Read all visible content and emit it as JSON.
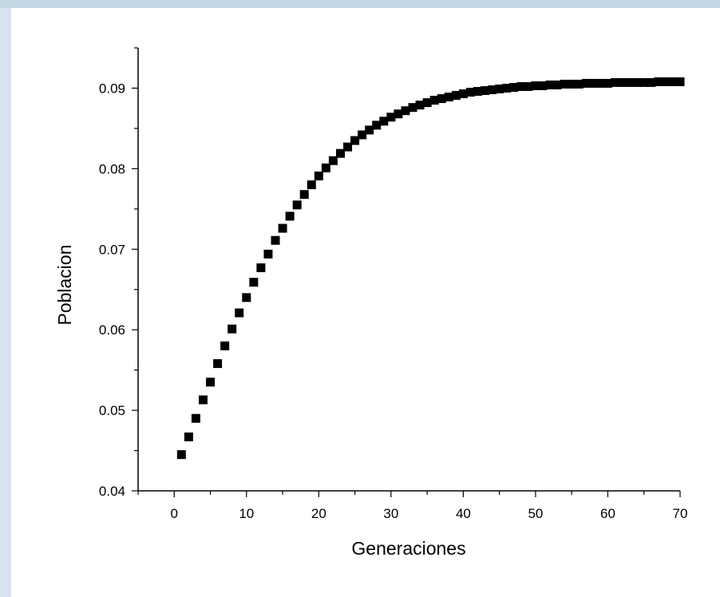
{
  "chart_data": {
    "type": "scatter",
    "title": "",
    "xlabel": "Generaciones",
    "ylabel": "Poblacion",
    "xlim": [
      -5,
      70
    ],
    "ylim": [
      0.04,
      0.095
    ],
    "x_ticks": [
      0,
      10,
      20,
      30,
      40,
      50,
      60,
      70
    ],
    "y_ticks": [
      0.04,
      0.05,
      0.06,
      0.07,
      0.08,
      0.09
    ],
    "x_tick_labels": [
      "0",
      "10",
      "20",
      "30",
      "40",
      "50",
      "60",
      "70"
    ],
    "y_tick_labels": [
      "0.04",
      "0.05",
      "0.06",
      "0.07",
      "0.08",
      "0.09"
    ],
    "marker": "square",
    "marker_color": "#000000",
    "grid": false,
    "legend": "none",
    "series": [
      {
        "x": [
          1,
          2,
          3,
          4,
          5,
          6,
          7,
          8,
          9,
          10,
          11,
          12,
          13,
          14,
          15,
          16,
          17,
          18,
          19,
          20,
          21,
          22,
          23,
          24,
          25,
          26,
          27,
          28,
          29,
          30,
          31,
          32,
          33,
          34,
          35,
          36,
          37,
          38,
          39,
          40,
          41,
          42,
          43,
          44,
          45,
          46,
          47,
          48,
          49,
          50,
          51,
          52,
          53,
          54,
          55,
          56,
          57,
          58,
          59,
          60,
          61,
          62,
          63,
          64,
          65,
          66,
          67,
          68,
          69,
          70
        ],
        "y": [
          0.0445,
          0.0467,
          0.049,
          0.0513,
          0.0535,
          0.0558,
          0.058,
          0.0601,
          0.0621,
          0.064,
          0.0659,
          0.0677,
          0.0694,
          0.0711,
          0.0726,
          0.0741,
          0.0755,
          0.0768,
          0.078,
          0.0791,
          0.0801,
          0.081,
          0.0819,
          0.0827,
          0.0835,
          0.0842,
          0.0848,
          0.0854,
          0.0859,
          0.0864,
          0.0868,
          0.0872,
          0.0876,
          0.0879,
          0.0882,
          0.0885,
          0.0887,
          0.0889,
          0.0891,
          0.0893,
          0.0895,
          0.0896,
          0.0897,
          0.0898,
          0.0899,
          0.09,
          0.0901,
          0.0902,
          0.0902,
          0.0903,
          0.0903,
          0.0904,
          0.0904,
          0.0905,
          0.0905,
          0.0905,
          0.0906,
          0.0906,
          0.0906,
          0.0906,
          0.0907,
          0.0907,
          0.0907,
          0.0907,
          0.0907,
          0.0907,
          0.0908,
          0.0908,
          0.0908,
          0.0908
        ]
      }
    ]
  }
}
